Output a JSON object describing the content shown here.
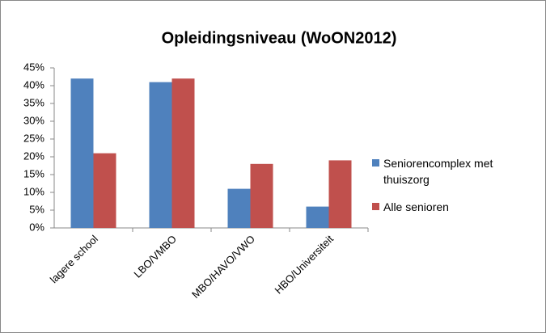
{
  "chart_data": {
    "type": "bar",
    "title": "Opleidingsniveau (WoON2012)",
    "categories": [
      "lagere school",
      "LBO/VMBO",
      "MBO/HAVO/VWO",
      "HBO/Universiteit"
    ],
    "series": [
      {
        "name": "Seniorencomplex met thuiszorg",
        "color": "#4f81bd",
        "values": [
          42,
          41,
          11,
          6
        ]
      },
      {
        "name": "Alle senioren",
        "color": "#c0504d",
        "values": [
          21,
          42,
          18,
          19
        ]
      }
    ],
    "ylim": [
      0,
      45
    ],
    "yticks": [
      {
        "value": 0,
        "label": "0%"
      },
      {
        "value": 5,
        "label": "5%"
      },
      {
        "value": 10,
        "label": "10%"
      },
      {
        "value": 15,
        "label": "15%"
      },
      {
        "value": 20,
        "label": "20%"
      },
      {
        "value": 25,
        "label": "25%"
      },
      {
        "value": 30,
        "label": "30%"
      },
      {
        "value": 35,
        "label": "35%"
      },
      {
        "value": 40,
        "label": "40%"
      },
      {
        "value": 45,
        "label": "45%"
      }
    ],
    "grid": false,
    "legend": "right"
  }
}
